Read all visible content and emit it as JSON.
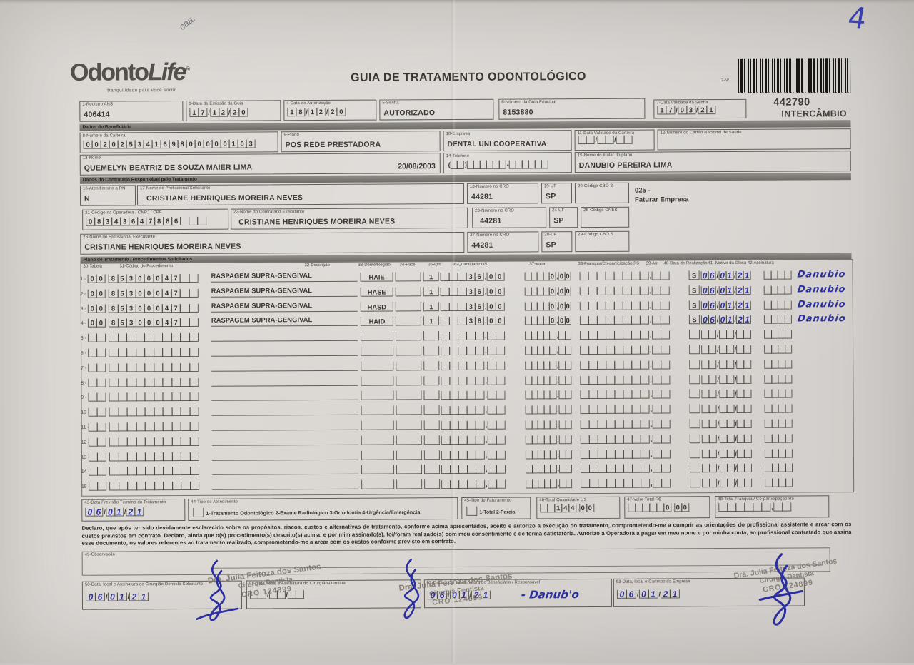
{
  "page": {
    "corner_number": "4",
    "corner_note": "caa.",
    "title": "GUIA DE TRATAMENTO ODONTOLÓGICO",
    "logo_main": "Odonto",
    "logo_life": "Life",
    "logo_reg": "®",
    "logo_tagline": "tranquilidade para você sorrir",
    "barcode_label": "2-Nº",
    "barcode_number": "442790",
    "barcode_type": "INTERCÂMBIO"
  },
  "header": {
    "f1": {
      "label": "1-Registro ANS",
      "value": "406414"
    },
    "f3": {
      "label": "3-Data de Emissão da Guia",
      "comb": "17/12/20"
    },
    "f4": {
      "label": "4-Data de Autorização",
      "comb": "18/12/20"
    },
    "f5": {
      "label": "5-Senha",
      "value": "AUTORIZADO"
    },
    "f6": {
      "label": "6-Número da Guia Principal",
      "value": "8153880"
    },
    "f7": {
      "label": "7-Data Validade da Senha",
      "comb": "17/03/21"
    }
  },
  "beneficiario": {
    "bar": "Dados do Beneficiário",
    "f8": {
      "label": "8-Número da Carteira",
      "comb": "00202534169800000103"
    },
    "f9": {
      "label": "9-Plano",
      "value": "POS REDE PRESTADORA"
    },
    "f10": {
      "label": "10-Empresa",
      "value": "DENTAL UNI  COOPERATIVA"
    },
    "f11": {
      "label": "11-Data Validade da Carteira",
      "comb": "  /  /  "
    },
    "f12": {
      "label": "12-Número do Cartão Nacional de Saúde",
      "value": ""
    },
    "f13": {
      "label": "13-Nome",
      "value": "QUEMELYN BEATRIZ DE SOUZA MAIER LIMA",
      "value2": "20/08/2003"
    },
    "f14": {
      "label": "14-Telefone",
      "comb": "(  )      -      "
    },
    "f15": {
      "label": "15-Nome do titular do plano",
      "value": "DANUBIO PEREIRA LIMA"
    }
  },
  "contratado": {
    "bar": "Dados do Contratado Responsável pelo Tratamento",
    "f16": {
      "label": "16-Atendimento a RN",
      "value": "N"
    },
    "f17": {
      "label": "17-Nome do Profissional Solicitante",
      "value": "CRISTIANE HENRIQUES MOREIRA NEVES"
    },
    "f18": {
      "label": "18-Número no CRO",
      "value": "44281"
    },
    "f19": {
      "label": "19-UF",
      "value": "SP"
    },
    "f20": {
      "label": "20-Código CBO S",
      "value": ""
    },
    "note_line1": "025 -",
    "note_line2": "Faturar Empresa",
    "f21": {
      "label": "21-Código na Operadora / CNPJ / CPF",
      "comb": "08343647866   "
    },
    "f22": {
      "label": "22-Nome do Contratado Executante",
      "value": "CRISTIANE HENRIQUES MOREIRA NEVES"
    },
    "f23": {
      "label": "23-Número no CRO",
      "value": "44281"
    },
    "f24": {
      "label": "24-UF",
      "value": "SP"
    },
    "f25": {
      "label": "25-Código CNES",
      "value": ""
    },
    "f26": {
      "label": "26-Nome do Profissional Executante",
      "value": "CRISTIANE HENRIQUES MOREIRA NEVES"
    },
    "f27": {
      "label": "27-Número no CRO",
      "value": "44281"
    },
    "f28": {
      "label": "28-UF",
      "value": "SP"
    },
    "f29": {
      "label": "29-Código CBO S",
      "value": ""
    }
  },
  "plan": {
    "bar": "Plano de Tratamento / Procedimentos Solicitados",
    "headers": [
      "30-Tabela",
      "31-Código do Procedimento",
      "32-Descrição",
      "33-Dente/Região",
      "34-Face",
      "35-Qtd",
      "36-Quantidade US",
      "37-Valor",
      "38-Franquia/Co-participação R$",
      "39-Aut",
      "40-Data de Realização",
      "41- Motivo da Glosa 42-Assinatura"
    ],
    "rows": [
      {
        "n": "1",
        "tabela": "00",
        "codigo": "85300047  ",
        "desc": "RASPAGEM SUPRA-GENGIVAL",
        "dente": "HAIE",
        "face": "",
        "qtd": "1",
        "us": "   36,00",
        "valor": "    0,00",
        "franquia": "        ,  ",
        "aut": "S",
        "data": "06/01/21",
        "glosa": "    ",
        "assinatura": "Danubio"
      },
      {
        "n": "2",
        "tabela": "00",
        "codigo": "85300047  ",
        "desc": "RASPAGEM SUPRA-GENGIVAL",
        "dente": "HASE",
        "face": "",
        "qtd": "1",
        "us": "   36,00",
        "valor": "    0,00",
        "franquia": "        ,  ",
        "aut": "S",
        "data": "06/01/21",
        "glosa": "    ",
        "assinatura": "Danubio"
      },
      {
        "n": "3",
        "tabela": "00",
        "codigo": "85300047  ",
        "desc": "RASPAGEM SUPRA-GENGIVAL",
        "dente": "HASD",
        "face": "",
        "qtd": "1",
        "us": "   36,00",
        "valor": "    0,00",
        "franquia": "        ,  ",
        "aut": "S",
        "data": "06/01/21",
        "glosa": "    ",
        "assinatura": "Danubio"
      },
      {
        "n": "4",
        "tabela": "00",
        "codigo": "85300047  ",
        "desc": "RASPAGEM SUPRA-GENGIVAL",
        "dente": "HAID",
        "face": "",
        "qtd": "1",
        "us": "   36,00",
        "valor": "    0,00",
        "franquia": "        ,  ",
        "aut": "S",
        "data": "06/01/21",
        "glosa": "    ",
        "assinatura": "Danubio"
      },
      {
        "n": "5",
        "tabela": "  ",
        "codigo": "          ",
        "desc": "",
        "dente": "",
        "face": "",
        "qtd": "",
        "us": "     ,  ",
        "valor": "     ,  ",
        "franquia": "        ,  ",
        "aut": "",
        "data": "  /  /  ",
        "glosa": "    ",
        "assinatura": ""
      },
      {
        "n": "6",
        "tabela": "  ",
        "codigo": "          ",
        "desc": "",
        "dente": "",
        "face": "",
        "qtd": "",
        "us": "     ,  ",
        "valor": "     ,  ",
        "franquia": "        ,  ",
        "aut": "",
        "data": "  /  /  ",
        "glosa": "    ",
        "assinatura": ""
      },
      {
        "n": "7",
        "tabela": "  ",
        "codigo": "          ",
        "desc": "",
        "dente": "",
        "face": "",
        "qtd": "",
        "us": "     ,  ",
        "valor": "     ,  ",
        "franquia": "        ,  ",
        "aut": "",
        "data": "  /  /  ",
        "glosa": "    ",
        "assinatura": ""
      },
      {
        "n": "8",
        "tabela": "  ",
        "codigo": "          ",
        "desc": "",
        "dente": "",
        "face": "",
        "qtd": "",
        "us": "     ,  ",
        "valor": "     ,  ",
        "franquia": "        ,  ",
        "aut": "",
        "data": "  /  /  ",
        "glosa": "    ",
        "assinatura": ""
      },
      {
        "n": "9",
        "tabela": "  ",
        "codigo": "          ",
        "desc": "",
        "dente": "",
        "face": "",
        "qtd": "",
        "us": "     ,  ",
        "valor": "     ,  ",
        "franquia": "        ,  ",
        "aut": "",
        "data": "  /  /  ",
        "glosa": "    ",
        "assinatura": ""
      },
      {
        "n": "10",
        "tabela": "  ",
        "codigo": "          ",
        "desc": "",
        "dente": "",
        "face": "",
        "qtd": "",
        "us": "     ,  ",
        "valor": "     ,  ",
        "franquia": "        ,  ",
        "aut": "",
        "data": "  /  /  ",
        "glosa": "    ",
        "assinatura": ""
      },
      {
        "n": "11",
        "tabela": "  ",
        "codigo": "          ",
        "desc": "",
        "dente": "",
        "face": "",
        "qtd": "",
        "us": "     ,  ",
        "valor": "     ,  ",
        "franquia": "        ,  ",
        "aut": "",
        "data": "  /  /  ",
        "glosa": "    ",
        "assinatura": ""
      },
      {
        "n": "12",
        "tabela": "  ",
        "codigo": "          ",
        "desc": "",
        "dente": "",
        "face": "",
        "qtd": "",
        "us": "     ,  ",
        "valor": "     ,  ",
        "franquia": "        ,  ",
        "aut": "",
        "data": "  /  /  ",
        "glosa": "    ",
        "assinatura": ""
      },
      {
        "n": "13",
        "tabela": "  ",
        "codigo": "          ",
        "desc": "",
        "dente": "",
        "face": "",
        "qtd": "",
        "us": "     ,  ",
        "valor": "     ,  ",
        "franquia": "        ,  ",
        "aut": "",
        "data": "  /  /  ",
        "glosa": "    ",
        "assinatura": ""
      },
      {
        "n": "14",
        "tabela": "  ",
        "codigo": "          ",
        "desc": "",
        "dente": "",
        "face": "",
        "qtd": "",
        "us": "     ,  ",
        "valor": "     ,  ",
        "franquia": "        ,  ",
        "aut": "",
        "data": "  /  /  ",
        "glosa": "    ",
        "assinatura": ""
      },
      {
        "n": "15",
        "tabela": "  ",
        "codigo": "          ",
        "desc": "",
        "dente": "",
        "face": "",
        "qtd": "",
        "us": "     ,  ",
        "valor": "     ,  ",
        "franquia": "        ,  ",
        "aut": "",
        "data": "  /  /  ",
        "glosa": "    ",
        "assinatura": ""
      }
    ]
  },
  "totals": {
    "f43": {
      "label": "43-Data Previsão Término do Tratamento",
      "comb": "06/01/21"
    },
    "f44": {
      "label": "44-Tipo de Atendimento",
      "options": "1-Tratamento Odontológico  2-Exame Radiológico  3-Ortodontia  4-Urgência/Emergência"
    },
    "f45": {
      "label": "45-Tipo de Faturamento",
      "options": "1-Total  2-Parcial"
    },
    "f46": {
      "label": "46-Total Quantidade US",
      "comb": "  144,00"
    },
    "f47": {
      "label": "47-Valor Total R$",
      "comb": "     0,00"
    },
    "f48": {
      "label": "48-Total Franquia / Co-participação R$",
      "comb": "      ,  "
    }
  },
  "declaration": "Declaro, que após ter sido devidamente esclarecido sobre os propósitos, riscos, custos e alternativas de tratamento, conforme acima apresentados, aceito e autorizo a execução do tratamento, comprometendo-me a cumprir as orientações do profissional assistente e arcar com os custos previstos em contrato. Declaro, ainda que o(s) procedimento(s) descrito(s) acima, e por mim assinado(s), foi/foram realizado(s) com meu consentimento e de forma satisfatória. Autorizo a Operadora a pagar em meu nome e por minha conta, ao profissional contratado que assina esse documento, os valores referentes ao tratamento realizado, comprometendo-me a arcar com os custos conforme previsto em contrato.",
  "observacao": {
    "label": "49-Observação"
  },
  "signatures": {
    "f50": {
      "label": "50-Data, local e Assinatura do Cirurgião-Dentista Solicitante",
      "comb": "06/01/21"
    },
    "f51": {
      "label": "51-Data, local e Assinatura do Cirurgião-Dentista",
      "comb": "  /  /  "
    },
    "f52": {
      "label": "52-Data, local e Assinatura do Beneficiário / Responsável",
      "comb": "06/01/21",
      "suffix": "- Danub'o"
    },
    "f53": {
      "label": "53-Data, local e Carimbo da Empresa",
      "comb": "06/01/21"
    },
    "stamp": {
      "line1": "Dra. Julia Feitoza dos Santos",
      "line2": "Cirurgiã Dentista",
      "line3": "CRO 124899"
    }
  }
}
